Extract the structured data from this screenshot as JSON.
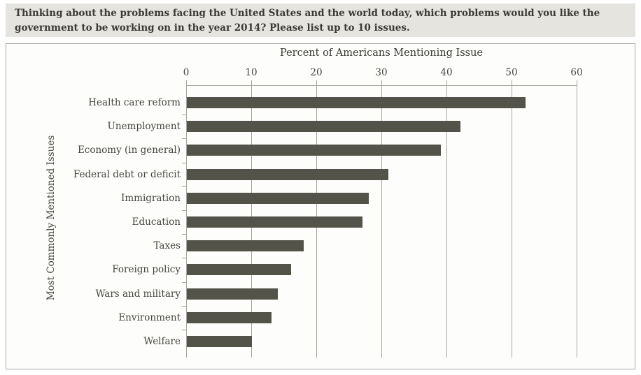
{
  "header": {
    "question": "Thinking about the problems facing the United States and the world today, which problems would you like the government to be working on in the year 2014? Please list up to 10 issues."
  },
  "chart_data": {
    "type": "bar",
    "orientation": "horizontal",
    "title": "Percent of Americans Mentioning Issue",
    "ylabel": "Most Commonly Mentioned Issues",
    "xlabel": "",
    "categories": [
      "Health care reform",
      "Unemployment",
      "Economy (in general)",
      "Federal debt or deficit",
      "Immigration",
      "Education",
      "Taxes",
      "Foreign policy",
      "Wars and military",
      "Environment",
      "Welfare"
    ],
    "values": [
      52,
      42,
      39,
      31,
      28,
      27,
      18,
      16,
      14,
      13,
      10
    ],
    "xlim": [
      0,
      60
    ],
    "xticks": [
      0,
      10,
      20,
      30,
      40,
      50,
      60
    ],
    "grid": true,
    "legend": "none",
    "bar_color": "#54534a",
    "axis_color": "#a9a49e"
  },
  "colors": {
    "header_bg": "#e6e4df",
    "panel_bg": "#fdfdfb",
    "panel_border": "#ada8a2",
    "header_text": "#3b3a35",
    "chart_text": "#45443f"
  }
}
